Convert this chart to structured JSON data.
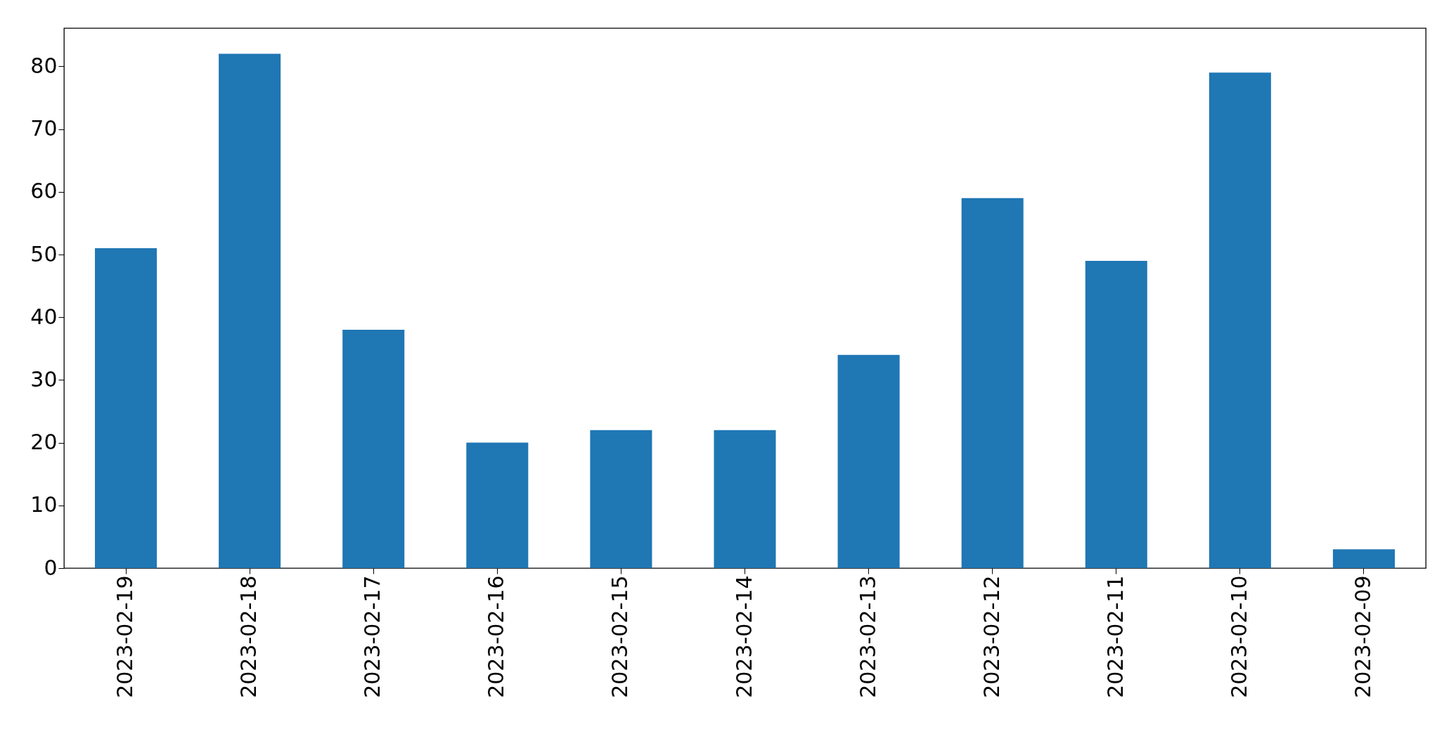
{
  "chart_data": {
    "type": "bar",
    "categories": [
      "2023-02-19",
      "2023-02-18",
      "2023-02-17",
      "2023-02-16",
      "2023-02-15",
      "2023-02-14",
      "2023-02-13",
      "2023-02-12",
      "2023-02-11",
      "2023-02-10",
      "2023-02-09"
    ],
    "values": [
      51,
      82,
      38,
      20,
      22,
      22,
      34,
      59,
      49,
      79,
      3
    ],
    "color": "#1f77b4",
    "ylim": [
      0,
      86.1
    ],
    "yticks": [
      0,
      10,
      20,
      30,
      40,
      50,
      60,
      70,
      80
    ],
    "grid": false
  }
}
